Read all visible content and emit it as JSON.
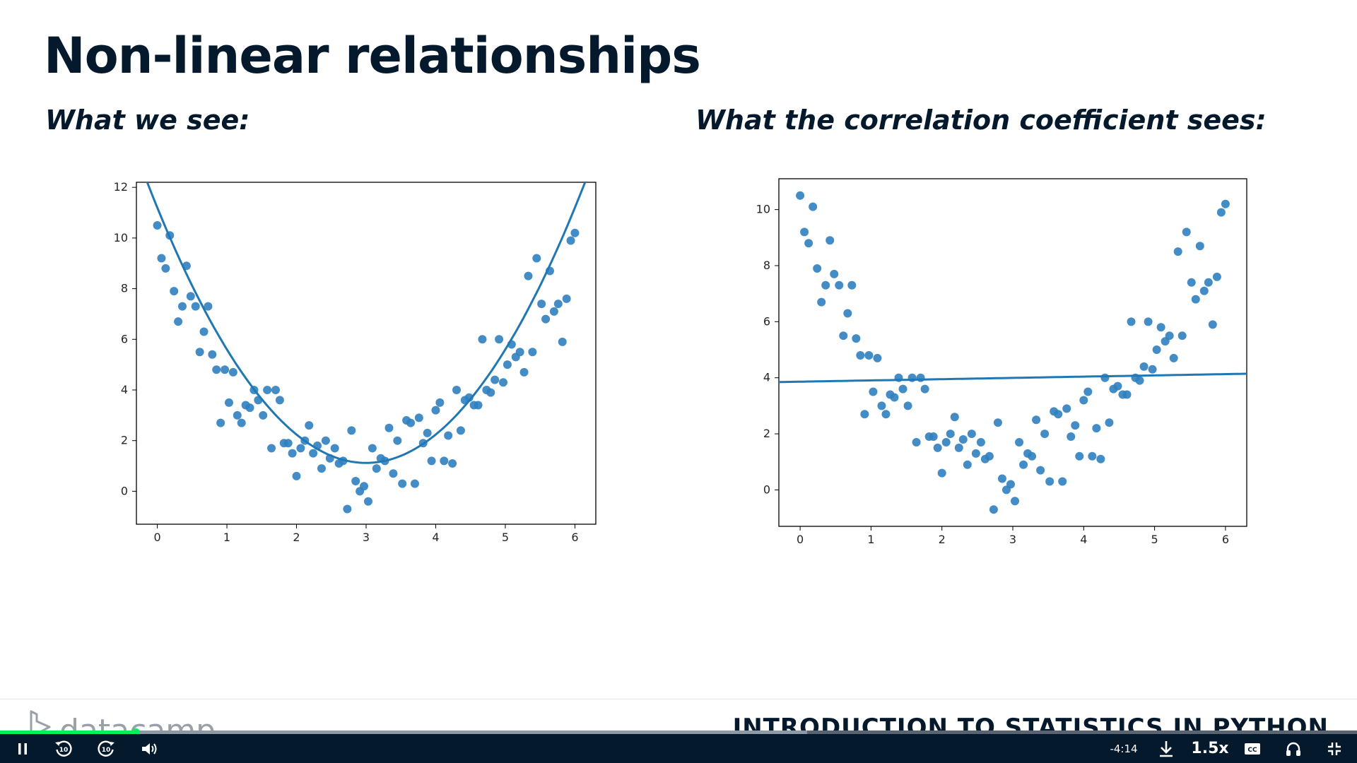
{
  "slide": {
    "title": "Non-linear relationships",
    "left_subtitle": "What we see:",
    "right_subtitle": "What the correlation coefficient sees:"
  },
  "colors": {
    "accent_blue": "#1f77b4",
    "point_blue": "#2f7fbf",
    "brand_green": "#03ef62",
    "navy": "#05192d"
  },
  "chart_data": [
    {
      "type": "scatter",
      "title": "",
      "xlabel": "",
      "ylabel": "",
      "xlim": [
        -0.3,
        6.3
      ],
      "ylim": [
        -1.3,
        12.2
      ],
      "xticks": [
        0,
        1,
        2,
        3,
        4,
        5,
        6
      ],
      "yticks": [
        0,
        2,
        4,
        6,
        8,
        10,
        12
      ],
      "grid": false,
      "fit": {
        "kind": "quadratic",
        "coefficients": [
          1.12,
          -6.72,
          11.2
        ]
      },
      "x": [
        0.0,
        0.06,
        0.12,
        0.18,
        0.24,
        0.3,
        0.36,
        0.42,
        0.48,
        0.55,
        0.61,
        0.67,
        0.73,
        0.79,
        0.85,
        0.91,
        0.97,
        1.03,
        1.09,
        1.15,
        1.21,
        1.27,
        1.33,
        1.39,
        1.45,
        1.52,
        1.58,
        1.64,
        1.7,
        1.76,
        1.82,
        1.88,
        1.94,
        2.0,
        2.06,
        2.12,
        2.18,
        2.24,
        2.3,
        2.36,
        2.42,
        2.48,
        2.55,
        2.61,
        2.67,
        2.73,
        2.79,
        2.85,
        2.91,
        2.97,
        3.03,
        3.09,
        3.15,
        3.21,
        3.27,
        3.33,
        3.39,
        3.45,
        3.52,
        3.58,
        3.64,
        3.7,
        3.76,
        3.82,
        3.88,
        3.94,
        4.0,
        4.06,
        4.12,
        4.18,
        4.24,
        4.3,
        4.36,
        4.42,
        4.48,
        4.55,
        4.61,
        4.67,
        4.73,
        4.79,
        4.85,
        4.91,
        4.97,
        5.03,
        5.09,
        5.15,
        5.21,
        5.27,
        5.33,
        5.39,
        5.45,
        5.52,
        5.58,
        5.64,
        5.7,
        5.76,
        5.82,
        5.88,
        5.94,
        6.0
      ],
      "y": [
        10.5,
        9.2,
        8.8,
        10.1,
        7.9,
        6.7,
        7.3,
        8.9,
        7.7,
        7.3,
        5.5,
        6.3,
        7.3,
        5.4,
        4.8,
        2.7,
        4.8,
        3.5,
        4.7,
        3.0,
        2.7,
        3.4,
        3.3,
        4.0,
        3.6,
        3.0,
        4.0,
        1.7,
        4.0,
        3.6,
        1.9,
        1.9,
        1.5,
        0.6,
        1.7,
        2.0,
        2.6,
        1.5,
        1.8,
        0.9,
        2.0,
        1.3,
        1.7,
        1.1,
        1.2,
        -0.7,
        2.4,
        0.4,
        0.0,
        0.2,
        -0.4,
        1.7,
        0.9,
        1.3,
        1.2,
        2.5,
        0.7,
        2.0,
        0.3,
        2.8,
        2.7,
        0.3,
        2.9,
        1.9,
        2.3,
        1.2,
        3.2,
        3.5,
        1.2,
        2.2,
        1.1,
        4.0,
        2.4,
        3.6,
        3.7,
        3.4,
        3.4,
        6.0,
        4.0,
        3.9,
        4.4,
        6.0,
        4.3,
        5.0,
        5.8,
        5.3,
        5.5,
        4.7,
        8.5,
        5.5,
        9.2,
        7.4,
        6.8,
        8.7,
        7.1,
        7.4,
        5.9,
        7.6,
        9.9,
        10.2
      ]
    },
    {
      "type": "scatter",
      "title": "",
      "xlabel": "",
      "ylabel": "",
      "xlim": [
        -0.3,
        6.3
      ],
      "ylim": [
        -1.3,
        11.1
      ],
      "xticks": [
        0,
        1,
        2,
        3,
        4,
        5,
        6
      ],
      "yticks": [
        0,
        2,
        4,
        6,
        8,
        10
      ],
      "grid": false,
      "fit": {
        "kind": "linear",
        "coefficients": [
          0.045,
          3.86
        ]
      },
      "x": [
        0.0,
        0.06,
        0.12,
        0.18,
        0.24,
        0.3,
        0.36,
        0.42,
        0.48,
        0.55,
        0.61,
        0.67,
        0.73,
        0.79,
        0.85,
        0.91,
        0.97,
        1.03,
        1.09,
        1.15,
        1.21,
        1.27,
        1.33,
        1.39,
        1.45,
        1.52,
        1.58,
        1.64,
        1.7,
        1.76,
        1.82,
        1.88,
        1.94,
        2.0,
        2.06,
        2.12,
        2.18,
        2.24,
        2.3,
        2.36,
        2.42,
        2.48,
        2.55,
        2.61,
        2.67,
        2.73,
        2.79,
        2.85,
        2.91,
        2.97,
        3.03,
        3.09,
        3.15,
        3.21,
        3.27,
        3.33,
        3.39,
        3.45,
        3.52,
        3.58,
        3.64,
        3.7,
        3.76,
        3.82,
        3.88,
        3.94,
        4.0,
        4.06,
        4.12,
        4.18,
        4.24,
        4.3,
        4.36,
        4.42,
        4.48,
        4.55,
        4.61,
        4.67,
        4.73,
        4.79,
        4.85,
        4.91,
        4.97,
        5.03,
        5.09,
        5.15,
        5.21,
        5.27,
        5.33,
        5.39,
        5.45,
        5.52,
        5.58,
        5.64,
        5.7,
        5.76,
        5.82,
        5.88,
        5.94,
        6.0
      ],
      "y": [
        10.5,
        9.2,
        8.8,
        10.1,
        7.9,
        6.7,
        7.3,
        8.9,
        7.7,
        7.3,
        5.5,
        6.3,
        7.3,
        5.4,
        4.8,
        2.7,
        4.8,
        3.5,
        4.7,
        3.0,
        2.7,
        3.4,
        3.3,
        4.0,
        3.6,
        3.0,
        4.0,
        1.7,
        4.0,
        3.6,
        1.9,
        1.9,
        1.5,
        0.6,
        1.7,
        2.0,
        2.6,
        1.5,
        1.8,
        0.9,
        2.0,
        1.3,
        1.7,
        1.1,
        1.2,
        -0.7,
        2.4,
        0.4,
        0.0,
        0.2,
        -0.4,
        1.7,
        0.9,
        1.3,
        1.2,
        2.5,
        0.7,
        2.0,
        0.3,
        2.8,
        2.7,
        0.3,
        2.9,
        1.9,
        2.3,
        1.2,
        3.2,
        3.5,
        1.2,
        2.2,
        1.1,
        4.0,
        2.4,
        3.6,
        3.7,
        3.4,
        3.4,
        6.0,
        4.0,
        3.9,
        4.4,
        6.0,
        4.3,
        5.0,
        5.8,
        5.3,
        5.5,
        4.7,
        8.5,
        5.5,
        9.2,
        7.4,
        6.8,
        8.7,
        7.1,
        7.4,
        5.9,
        7.6,
        9.9,
        10.2
      ]
    }
  ],
  "footer": {
    "logo_text": "datacamp",
    "course_title": "INTRODUCTION TO STATISTICS IN PYTHON"
  },
  "player": {
    "progress": 0.1,
    "buffered": 0.595,
    "time_remaining": "-4:14",
    "speed": "1.5x",
    "rewind_seconds": "10",
    "forward_seconds": "10",
    "cc_label": "CC",
    "icons": [
      "pause-icon",
      "rewind-10-icon",
      "forward-10-icon",
      "volume-icon",
      "download-icon",
      "captions-icon",
      "headphones-icon",
      "exit-fullscreen-icon"
    ]
  }
}
